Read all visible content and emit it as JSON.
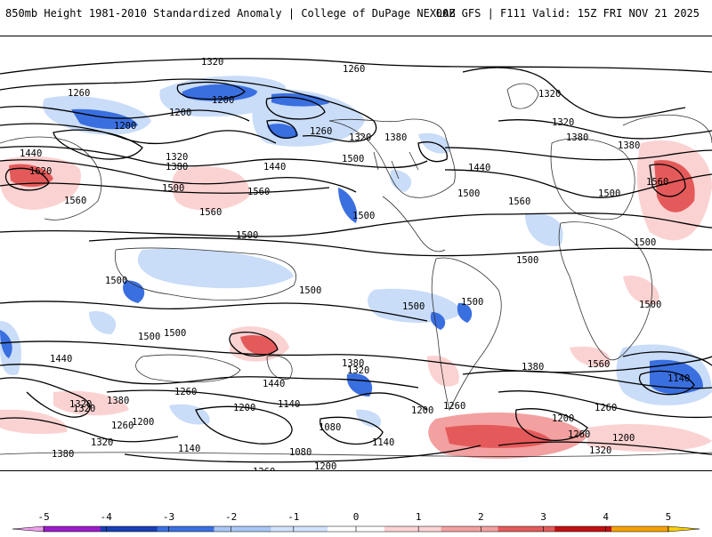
{
  "header": {
    "product": "850mb Height 1981-2010 Standardized Anomaly | College of DuPage NEXLAB",
    "run_info": "00Z GFS | F111 Valid: 15Z FRI NOV 21 2025"
  },
  "contour_labels": [
    "1320",
    "1260",
    "1200",
    "1260",
    "1200",
    "1200",
    "1320",
    "1380",
    "1320",
    "1380",
    "1380",
    "1320",
    "1260",
    "1440",
    "1380",
    "1320",
    "1500",
    "1560",
    "1440",
    "1500",
    "1440",
    "1500",
    "1560",
    "1560",
    "1500",
    "1560",
    "1620",
    "1560",
    "1500",
    "1500",
    "1500",
    "1500",
    "1500",
    "1500",
    "1500",
    "1500",
    "1500",
    "1500",
    "1500",
    "1560",
    "1380",
    "1320",
    "1440",
    "1440",
    "1320",
    "1380",
    "1260",
    "1200",
    "1140",
    "1080",
    "1140",
    "1200",
    "1260",
    "1200",
    "1080",
    "1200",
    "1140",
    "1260",
    "1320",
    "1380",
    "1260",
    "1320",
    "1380",
    "1200",
    "1260",
    "1140",
    "1200",
    "1260",
    "1320"
  ],
  "legend": {
    "ticks": [
      "-5",
      "-4",
      "-3",
      "-2",
      "-1",
      "0",
      "1",
      "2",
      "3",
      "4",
      "5"
    ],
    "colors": [
      "#f0a0f0",
      "#9b1cc8",
      "#1a3fb5",
      "#3a6fe0",
      "#a8c6f5",
      "#d2e2fb",
      "#ffffff",
      "#fbd2d2",
      "#f2a0a0",
      "#e45a5a",
      "#c01010",
      "#f5a000",
      "#fbd000"
    ]
  }
}
